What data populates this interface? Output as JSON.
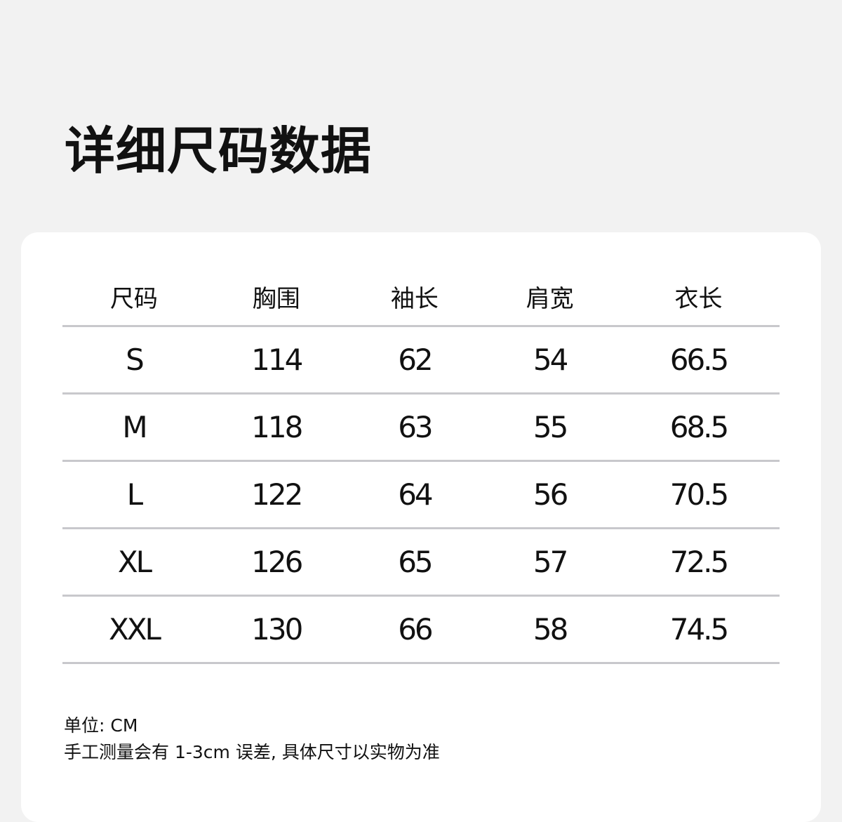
{
  "title": "详细尺码数据",
  "table": {
    "headers": [
      "尺码",
      "胸围",
      "袖长",
      "肩宽",
      "衣长"
    ],
    "rows": [
      [
        "S",
        "114",
        "62",
        "54",
        "66.5"
      ],
      [
        "M",
        "118",
        "63",
        "55",
        "68.5"
      ],
      [
        "L",
        "122",
        "64",
        "56",
        "70.5"
      ],
      [
        "XL",
        "126",
        "65",
        "57",
        "72.5"
      ],
      [
        "XXL",
        "130",
        "66",
        "58",
        "74.5"
      ]
    ]
  },
  "notes": {
    "unit": "单位: CM",
    "disclaimer": "手工测量会有 1-3cm 误差, 具体尺寸以实物为准"
  },
  "colors": {
    "background": "#f2f2f2",
    "card": "#ffffff",
    "divider": "#c8c8cc"
  }
}
